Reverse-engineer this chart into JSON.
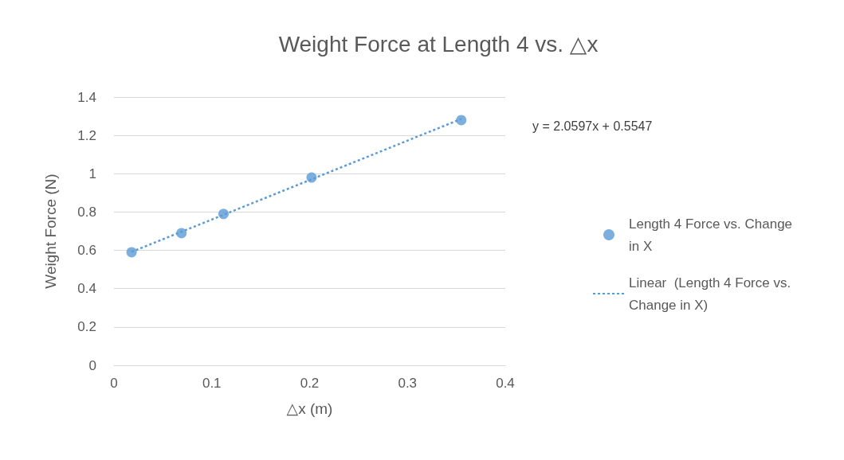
{
  "chart_data": {
    "type": "scatter",
    "title": "Weight Force at Length 4 vs. △x",
    "xlabel": "△x (m)",
    "ylabel": "Weight Force (N)",
    "xlim": [
      0,
      0.4
    ],
    "xticks": [
      0,
      0.1,
      0.2,
      0.3,
      0.4
    ],
    "ylim": [
      0,
      1.4
    ],
    "yticks": [
      0,
      0.2,
      0.4,
      0.6,
      0.8,
      1,
      1.2,
      1.4
    ],
    "grid": "y",
    "legend": "right",
    "annotations": [
      "y = 2.0597x + 0.5547"
    ],
    "series": [
      {
        "name": "Length 4 Force vs. Change in X",
        "color": "#5b9bd5",
        "marker": "circle",
        "x": [
          0.018,
          0.069,
          0.112,
          0.202,
          0.355
        ],
        "values": [
          0.59,
          0.69,
          0.79,
          0.98,
          1.28
        ]
      },
      {
        "name": "Linear  (Length 4 Force vs. Change in X)",
        "type": "line",
        "color": "#5b9bd5",
        "marker": "none",
        "line_style": "dotted",
        "x": [
          0.018,
          0.355
        ],
        "values": [
          0.592,
          1.286
        ]
      }
    ]
  }
}
